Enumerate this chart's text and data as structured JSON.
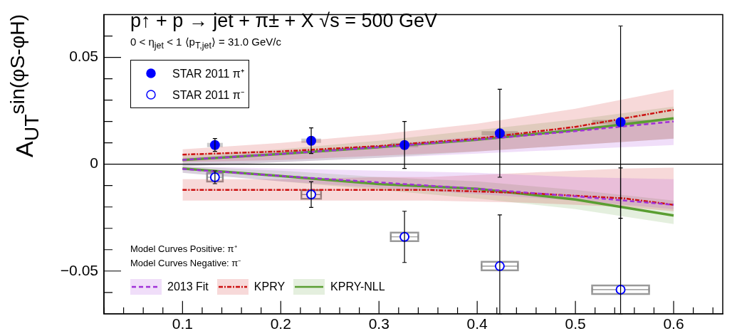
{
  "chart_data": {
    "type": "line",
    "title": "p↑ + p → jet + π± + X  √s = 500 GeV",
    "subtitle": "0 < η$_{jet}$ < 1  ⟨p$_{T,jet}$⟩ = 31.0 GeV/c",
    "ylabel": "A$_{UT}$$^{sin(φS-φH)}$",
    "annotations": [
      "Model Curves Positive: π⁺",
      "Model Curves Negative: π⁻"
    ],
    "xlim": [
      0.02,
      0.65
    ],
    "xticks": [
      {
        "value": 0.02,
        "label": null
      },
      {
        "value": 0.04,
        "label": null
      },
      {
        "value": 0.06,
        "label": null
      },
      {
        "value": 0.08,
        "label": null
      },
      0.1,
      {
        "value": 0.12,
        "label": null
      },
      {
        "value": 0.14,
        "label": null
      },
      {
        "value": 0.16,
        "label": null
      },
      {
        "value": 0.18,
        "label": null
      },
      0.2,
      {
        "value": 0.22,
        "label": null
      },
      {
        "value": 0.24,
        "label": null
      },
      {
        "value": 0.26,
        "label": null
      },
      {
        "value": 0.28,
        "label": null
      },
      0.3,
      {
        "value": 0.32,
        "label": null
      },
      {
        "value": 0.34,
        "label": null
      },
      {
        "value": 0.36,
        "label": null
      },
      {
        "value": 0.38,
        "label": null
      },
      0.4,
      {
        "value": 0.42,
        "label": null
      },
      {
        "value": 0.44,
        "label": null
      },
      {
        "value": 0.46,
        "label": null
      },
      {
        "value": 0.48,
        "label": null
      },
      0.5,
      {
        "value": 0.52,
        "label": null
      },
      {
        "value": 0.54,
        "label": null
      },
      {
        "value": 0.56,
        "label": null
      },
      {
        "value": 0.58,
        "label": null
      },
      0.6,
      {
        "value": 0.62,
        "label": null
      },
      {
        "value": 0.64,
        "label": null
      }
    ],
    "ylim": [
      -0.07,
      0.07
    ],
    "yticks": [
      {
        "value": -0.06,
        "label": null
      },
      {
        "value": -0.05,
        "label": "−0.05"
      },
      {
        "value": -0.04,
        "label": null
      },
      {
        "value": -0.03,
        "label": null
      },
      {
        "value": -0.02,
        "label": null
      },
      {
        "value": -0.01,
        "label": null
      },
      0,
      {
        "value": 0.01,
        "label": null
      },
      {
        "value": 0.02,
        "label": null
      },
      {
        "value": 0.03,
        "label": null
      },
      {
        "value": 0.04,
        "label": null
      },
      0.05,
      {
        "value": 0.06,
        "label": null
      }
    ],
    "grid": false,
    "legend": "left",
    "ref_lines": [
      {
        "axis": "y",
        "value": 0,
        "color": "#000000"
      }
    ],
    "series": [
      {
        "name": "2013 Fit",
        "color": "#a030d8",
        "line_style": "dashed",
        "x": [
          0.1,
          0.2,
          0.3,
          0.4,
          0.5,
          0.6
        ],
        "values": [
          0.002,
          0.0048,
          0.008,
          0.0115,
          0.0155,
          0.02
        ],
        "lower": [
          -0.001,
          0.001,
          0.003,
          0.005,
          0.007,
          0.009
        ],
        "upper": [
          0.003,
          0.006,
          0.009,
          0.013,
          0.017,
          0.022
        ]
      },
      {
        "name": "KPRY",
        "color": "#cc1111",
        "line_style": "dashdot",
        "x": [
          0.1,
          0.2,
          0.3,
          0.4,
          0.5,
          0.6
        ],
        "values": [
          0.0045,
          0.006,
          0.0085,
          0.012,
          0.0175,
          0.0255
        ],
        "lower": [
          0.001,
          0.002,
          0.004,
          0.006,
          0.009,
          0.012
        ],
        "upper": [
          0.007,
          0.01,
          0.014,
          0.019,
          0.026,
          0.035
        ]
      },
      {
        "name": "KPRY-NLL",
        "color": "#5a9e32",
        "line_style": "solid",
        "x": [
          0.1,
          0.2,
          0.3,
          0.4,
          0.5,
          0.6
        ],
        "values": [
          0.002,
          0.0048,
          0.008,
          0.0115,
          0.016,
          0.0215
        ],
        "lower": [
          -0.001,
          0.001,
          0.003,
          0.006,
          0.009,
          0.012
        ],
        "upper": [
          0.004,
          0.007,
          0.011,
          0.016,
          0.021,
          0.027
        ]
      },
      {
        "color": "#a030d8",
        "line_style": "dashed",
        "x": [
          0.1,
          0.2,
          0.3,
          0.4,
          0.5,
          0.6
        ],
        "values": [
          -0.0022,
          -0.0055,
          -0.0085,
          -0.0115,
          -0.015,
          -0.019
        ],
        "lower": [
          -0.004,
          -0.008,
          -0.011,
          -0.014,
          -0.017,
          -0.021
        ],
        "upper": [
          -0.001,
          -0.002,
          -0.003,
          -0.004,
          -0.006,
          -0.007
        ]
      },
      {
        "color": "#cc1111",
        "line_style": "dashdot",
        "x": [
          0.1,
          0.2,
          0.3,
          0.35,
          0.45,
          0.55,
          0.6
        ],
        "values": [
          -0.012,
          -0.012,
          -0.012,
          -0.012,
          -0.0135,
          -0.016,
          -0.019
        ],
        "lower": [
          -0.017,
          -0.017,
          -0.017,
          -0.017,
          -0.018,
          -0.02,
          -0.022
        ],
        "upper": [
          -0.007,
          -0.007,
          -0.006,
          -0.006,
          -0.004,
          -0.002,
          -0.0016
        ]
      },
      {
        "color": "#5a9e32",
        "line_style": "solid",
        "x": [
          0.1,
          0.2,
          0.3,
          0.4,
          0.5,
          0.6
        ],
        "values": [
          -0.002,
          -0.0055,
          -0.0093,
          -0.0115,
          -0.0165,
          -0.024
        ],
        "lower": [
          -0.004,
          -0.008,
          -0.012,
          -0.016,
          -0.021,
          -0.028
        ],
        "upper": [
          -0.001,
          -0.003,
          -0.006,
          -0.008,
          -0.012,
          -0.017
        ]
      },
      {
        "name": "STAR 2011 π⁺",
        "type": "scatter",
        "marker": "circle",
        "color": "#0000ff",
        "x": [
          0.133,
          0.231,
          0.326,
          0.423,
          0.546
        ],
        "values": [
          0.009,
          0.011,
          0.009,
          0.0145,
          0.0197
        ],
        "errors": [
          0.003,
          0.006,
          0.011,
          0.0206,
          0.045
        ],
        "xerrors": [
          0.008,
          0.01,
          0.014,
          0.0185,
          0.029
        ]
      },
      {
        "name": "STAR 2011 π⁻",
        "type": "scatter",
        "marker": "open circle",
        "color": "#0000ff",
        "x": [
          0.133,
          0.231,
          0.326,
          0.423,
          0.546
        ],
        "values": [
          -0.0061,
          -0.0142,
          -0.034,
          -0.0477,
          -0.0587
        ],
        "errors": [
          0.003,
          0.006,
          0.012,
          [
            -0.07,
            -0.0237
          ],
          [
            -0.07,
            -0.0017
          ]
        ],
        "xerrors": [
          0.008,
          0.01,
          0.014,
          0.0185,
          0.029
        ]
      }
    ]
  }
}
